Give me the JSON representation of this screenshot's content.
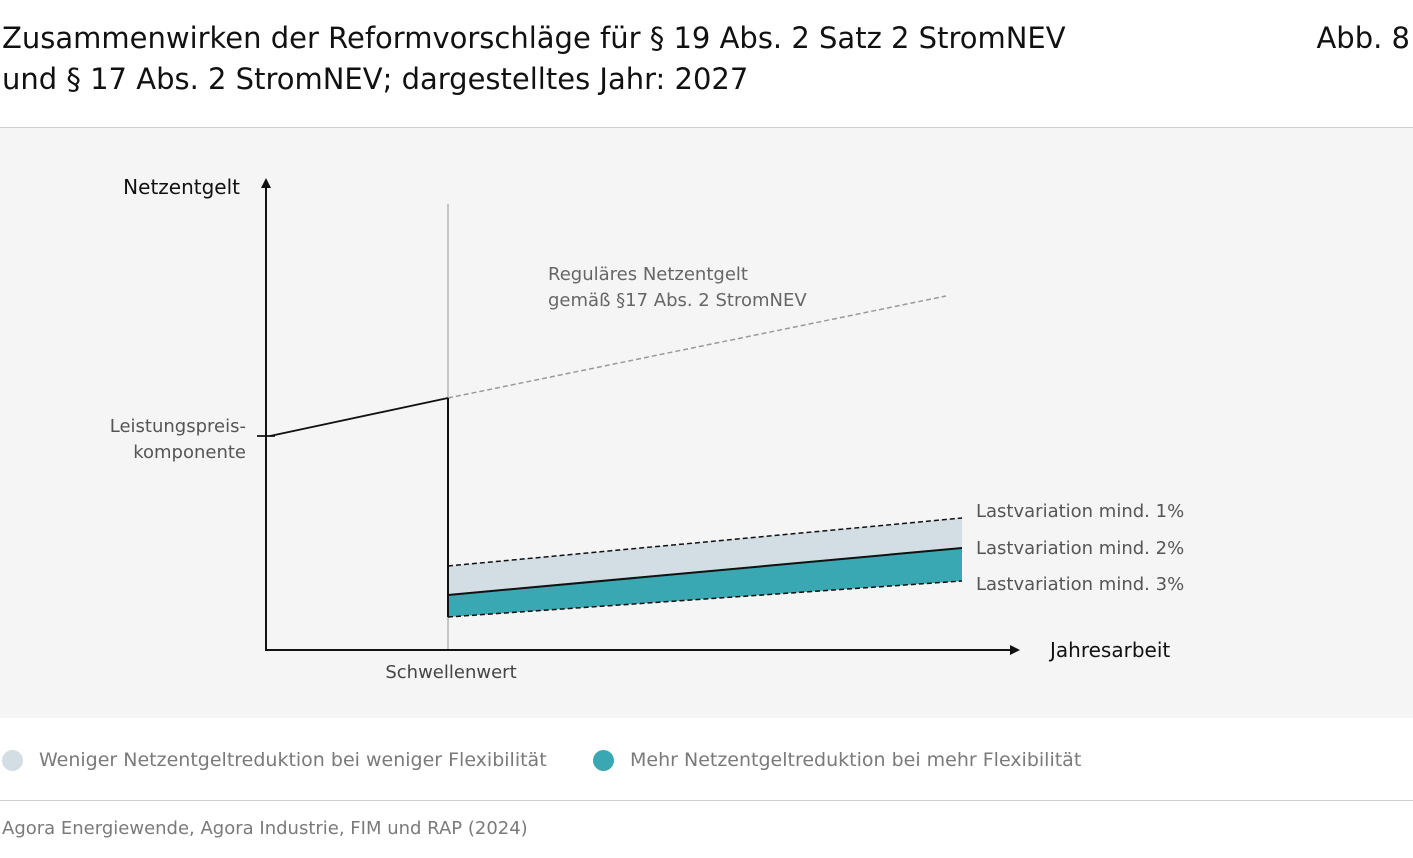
{
  "header": {
    "title_line1": "Zusammenwirken der Reformvorschläge für § 19 Abs. 2 Satz 2 StromNEV",
    "title_line2": "und § 17 Abs. 2 StromNEV; dargestelltes Jahr: 2027",
    "figure_label": "Abb. 8"
  },
  "diagram": {
    "y_axis_label": "Netzentgelt",
    "x_axis_label": "Jahresarbeit",
    "threshold_label": "Schwellenwert",
    "capacity_component_line1": "Leistungspreis-",
    "capacity_component_line2": "komponente",
    "regular_fee_line1": "Reguläres Netzentgelt",
    "regular_fee_line2": "gemäß §17 Abs. 2 StromNEV",
    "load_variation_1": "Lastvariation mind. 1%",
    "load_variation_2": "Lastvariation mind. 2%",
    "load_variation_3": "Lastvariation mind. 3%"
  },
  "legend": {
    "items": [
      {
        "label": "Weniger Netzentgeltreduktion bei weniger Flexibilität",
        "color": "#d3dde4"
      },
      {
        "label": "Mehr Netzentgeltreduktion bei mehr Flexibilität",
        "color": "#3aa8b2"
      }
    ]
  },
  "footer": {
    "source": "Agora Energiewende, Agora Industrie, FIM und RAP (2024)"
  },
  "colors": {
    "light_band": "#d3dde4",
    "teal_band": "#3aa8b2",
    "dashed_regular": "#9a9a9a",
    "axis": "#111111"
  }
}
